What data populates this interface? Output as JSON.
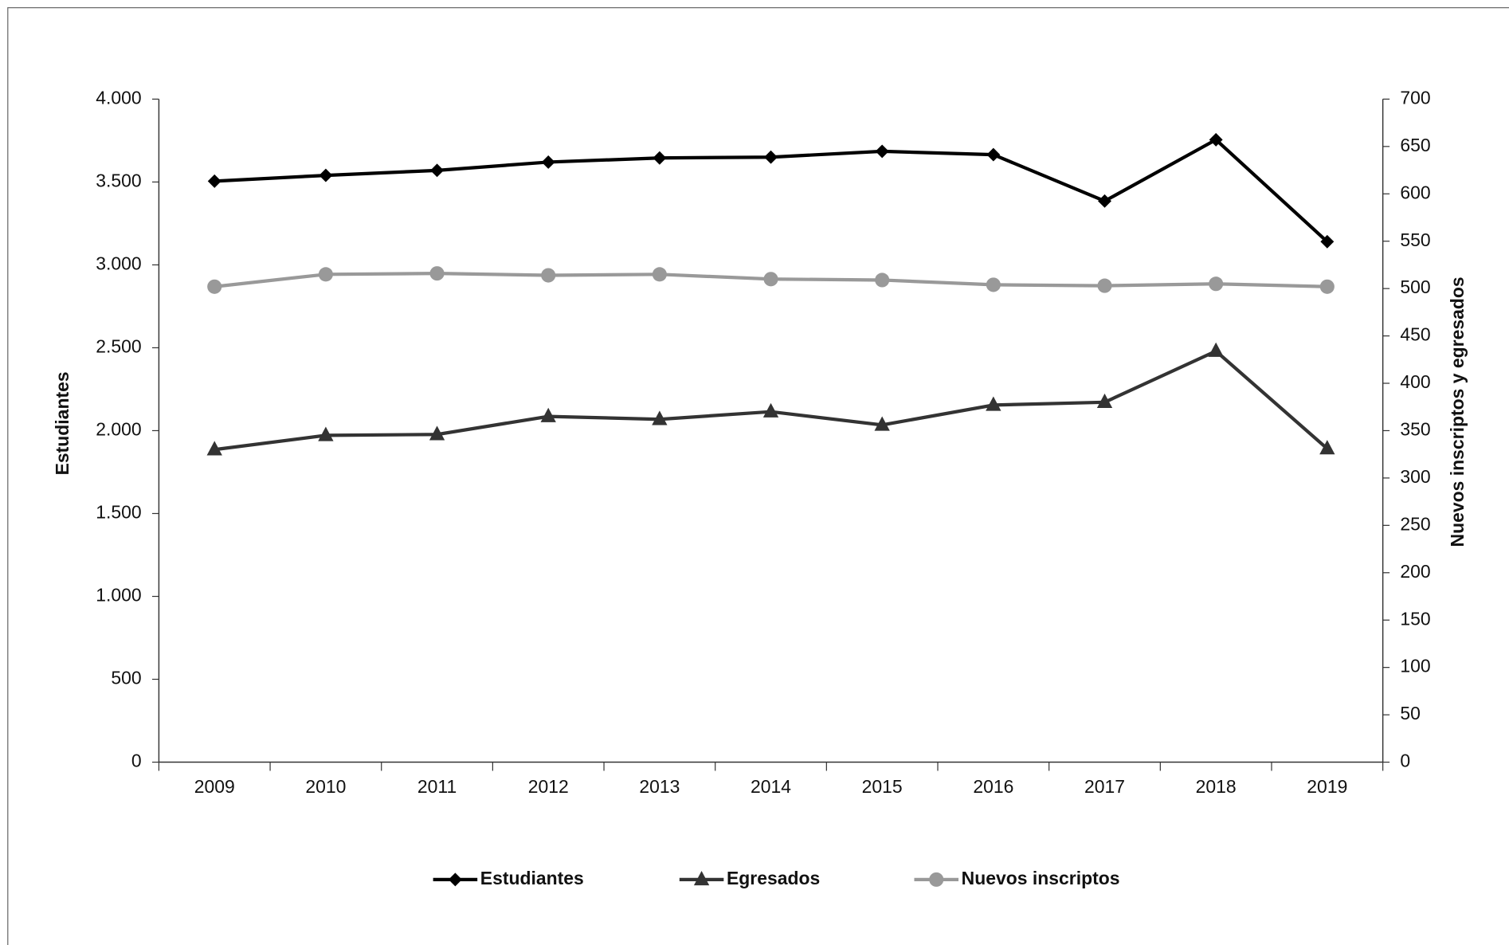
{
  "chart_data": {
    "type": "line",
    "categories": [
      "2009",
      "2010",
      "2011",
      "2012",
      "2013",
      "2014",
      "2015",
      "2016",
      "2017",
      "2018",
      "2019"
    ],
    "ylabel": "Estudiantes",
    "y2label": "Nuevos inscriptos y egresados",
    "ylim": [
      0,
      4000
    ],
    "yticks": [
      0,
      500,
      {
        "value": 1000,
        "label": "1.000"
      },
      {
        "value": 1500,
        "label": "1.500"
      },
      {
        "value": 2000,
        "label": "2.000"
      },
      {
        "value": 2500,
        "label": "2.500"
      },
      {
        "value": 3000,
        "label": "3.000"
      },
      {
        "value": 3500,
        "label": "3.500"
      },
      {
        "value": 4000,
        "label": "4.000"
      }
    ],
    "y2lim": [
      0,
      700
    ],
    "y2ticks": [
      0,
      50,
      100,
      150,
      200,
      250,
      300,
      350,
      400,
      450,
      500,
      550,
      600,
      650,
      700
    ],
    "legend": "bottom",
    "series": [
      {
        "name": "Estudiantes",
        "color": "#000000",
        "marker": "diamond",
        "values": [
          3505,
          3540,
          3570,
          3620,
          3645,
          3650,
          3685,
          3665,
          3385,
          3755,
          3140
        ]
      },
      {
        "name": "Egresados",
        "color": "#333333",
        "marker": "triangle",
        "axis": "y2",
        "values": [
          330,
          345,
          346,
          365,
          362,
          370,
          356,
          377,
          380,
          434,
          331
        ]
      },
      {
        "name": "Nuevos inscriptos",
        "color": "#999999",
        "marker": "circle",
        "axis": "y2",
        "values": [
          502,
          515,
          516,
          514,
          515,
          510,
          509,
          504,
          503,
          505,
          502
        ]
      }
    ]
  }
}
